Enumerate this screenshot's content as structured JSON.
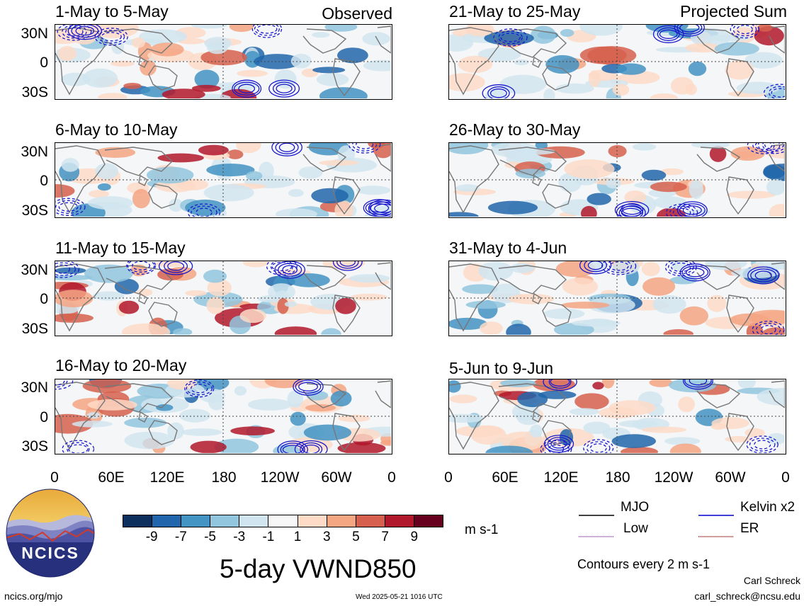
{
  "headers": {
    "left_label": "Observed",
    "right_label": "Projected Sum"
  },
  "panels_left": [
    {
      "title": "1-May to 5-May"
    },
    {
      "title": "6-May to 10-May"
    },
    {
      "title": "11-May to 15-May"
    },
    {
      "title": "16-May to 20-May"
    }
  ],
  "panels_right": [
    {
      "title": "21-May to 25-May"
    },
    {
      "title": "26-May to 30-May"
    },
    {
      "title": "31-May to 4-Jun"
    },
    {
      "title": "5-Jun to 9-Jun"
    }
  ],
  "y_ticks": [
    "30N",
    "0",
    "30S"
  ],
  "x_ticks": [
    "0",
    "60E",
    "120E",
    "180",
    "120W",
    "60W",
    "0"
  ],
  "colorbar": {
    "labels": [
      "-9",
      "-7",
      "-5",
      "-3",
      "-1",
      "1",
      "3",
      "5",
      "7",
      "9"
    ],
    "colors": [
      "#0c2f5e",
      "#2166ac",
      "#4393c3",
      "#92c5de",
      "#d1e5f0",
      "#f7f7f7",
      "#fddbc7",
      "#f4a582",
      "#d6604d",
      "#b2182b",
      "#67001f"
    ],
    "unit": "m s-1"
  },
  "legend": {
    "mjo": "MJO",
    "kelvin": "Kelvin x2",
    "low": "Low",
    "er": "ER",
    "mjo_color": "#000000",
    "kelvin_color": "#0000cc",
    "low_color": "#9933cc",
    "er_color": "#cc0000",
    "contours": "Contours every 2 m s-1"
  },
  "title": "5-day VWND850",
  "logo_text": "NCICS",
  "footer": {
    "site": "ncics.org/mjo",
    "timestamp": "Wed 2025-05-21 1016 UTC",
    "author": "Carl Schreck",
    "email": "carl_schreck@ncsu.edu"
  }
}
